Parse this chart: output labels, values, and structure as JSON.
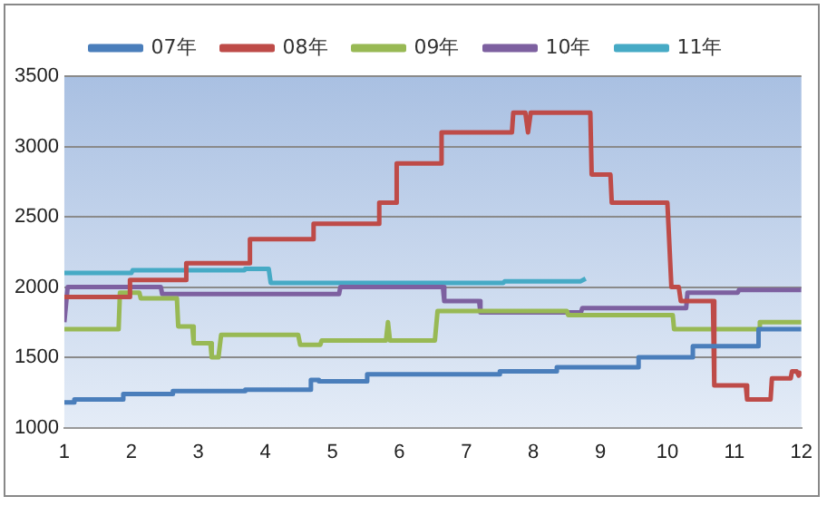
{
  "chart_data": {
    "type": "line",
    "xlim": [
      1,
      12
    ],
    "xticks": [
      1,
      2,
      3,
      4,
      5,
      6,
      7,
      8,
      9,
      10,
      11,
      12
    ],
    "ylim": [
      1000,
      3500
    ],
    "yticks": [
      1000,
      1500,
      2000,
      2500,
      3000,
      3500
    ],
    "grid": "y",
    "legend": "top",
    "marker": "none",
    "line_style": "solid",
    "series": [
      {
        "name": "07年",
        "color": "#4a7ebb",
        "x": [
          1,
          1.15,
          1.15,
          1.88,
          1.88,
          2.62,
          2.62,
          3.7,
          3.7,
          4.68,
          4.68,
          4.8,
          4.8,
          5.52,
          5.52,
          7.5,
          7.5,
          8.35,
          8.35,
          9.57,
          9.57,
          10.38,
          10.38,
          11.36,
          11.36,
          12
        ],
        "values": [
          1180,
          1180,
          1200,
          1200,
          1240,
          1240,
          1260,
          1260,
          1270,
          1270,
          1340,
          1340,
          1330,
          1330,
          1380,
          1380,
          1400,
          1400,
          1430,
          1430,
          1500,
          1500,
          1580,
          1580,
          1700,
          1700
        ]
      },
      {
        "name": "08年",
        "color": "#be4b48",
        "x": [
          1,
          1.98,
          1.98,
          2.82,
          2.82,
          3.77,
          3.77,
          4.72,
          4.72,
          5.7,
          5.7,
          5.96,
          5.96,
          6.63,
          6.63,
          7.68,
          7.7,
          7.88,
          7.92,
          7.96,
          8.85,
          8.87,
          9.15,
          9.17,
          10,
          10.06,
          10.17,
          10.2,
          10.68,
          10.7,
          11.17,
          11.19,
          11.54,
          11.56,
          11.84,
          11.86,
          11.93,
          11.96,
          12
        ],
        "values": [
          1930,
          1930,
          2050,
          2050,
          2170,
          2170,
          2340,
          2340,
          2450,
          2450,
          2600,
          2600,
          2880,
          2880,
          3100,
          3100,
          3240,
          3240,
          3100,
          3240,
          3240,
          2800,
          2800,
          2600,
          2600,
          2000,
          2000,
          1900,
          1900,
          1300,
          1300,
          1200,
          1200,
          1350,
          1350,
          1400,
          1400,
          1370,
          1400
        ]
      },
      {
        "name": "09年",
        "color": "#98b954",
        "x": [
          1,
          1.81,
          1.83,
          2.12,
          2.14,
          2.68,
          2.7,
          2.91,
          2.93,
          3.18,
          3.2,
          3.3,
          3.34,
          4.49,
          4.52,
          4.82,
          4.84,
          5.8,
          5.83,
          5.86,
          6.53,
          6.57,
          8.5,
          8.52,
          10.08,
          10.1,
          11.36,
          11.38,
          12
        ],
        "values": [
          1700,
          1700,
          1960,
          1960,
          1920,
          1920,
          1720,
          1720,
          1600,
          1600,
          1500,
          1500,
          1660,
          1660,
          1590,
          1590,
          1620,
          1620,
          1750,
          1620,
          1620,
          1830,
          1830,
          1800,
          1800,
          1700,
          1700,
          1750,
          1750
        ]
      },
      {
        "name": "10年",
        "color": "#7d60a0",
        "x": [
          1,
          1.05,
          2.44,
          2.46,
          5.1,
          5.12,
          6.65,
          6.67,
          7.19,
          7.21,
          8.71,
          8.73,
          10.28,
          10.3,
          11.05,
          11.07,
          12
        ],
        "values": [
          1750,
          2000,
          2000,
          1950,
          1950,
          2000,
          2000,
          1900,
          1900,
          1820,
          1820,
          1850,
          1850,
          1960,
          1960,
          1980,
          1980
        ]
      },
      {
        "name": "11年",
        "color": "#46aac5",
        "x": [
          1,
          2,
          2.02,
          3.69,
          3.7,
          4.05,
          4.08,
          7.55,
          7.57,
          8.7,
          8.78
        ],
        "values": [
          2100,
          2100,
          2120,
          2120,
          2130,
          2130,
          2030,
          2030,
          2040,
          2040,
          2060
        ]
      }
    ]
  }
}
